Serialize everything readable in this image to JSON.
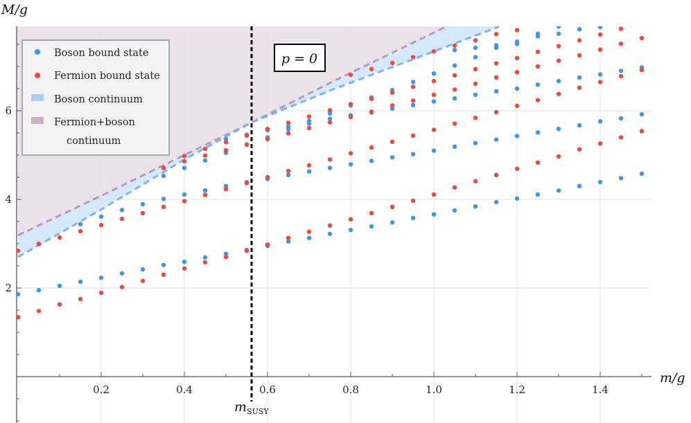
{
  "chart_data": {
    "type": "scatter",
    "title": "",
    "xlabel": "m/g",
    "ylabel": "M/g",
    "xlim": [
      0,
      1.52
    ],
    "ylim": [
      -1.0,
      7.9
    ],
    "grid": true,
    "x_ticks": [
      "0.2",
      "0.4",
      "0.6",
      "0.8",
      "1.0",
      "1.2",
      "1.4"
    ],
    "y_ticks": [
      "2",
      "4",
      "6"
    ],
    "annotation_box": "p = 0",
    "vertical_marker": {
      "x": 0.5617,
      "label": "m",
      "label_sub": "SUSY",
      "style": "black dashed"
    },
    "legend": {
      "placement": "top-left",
      "entries": [
        {
          "label": "Boson bound state",
          "kind": "marker",
          "color": "#3d95f2"
        },
        {
          "label": "Fermion bound state",
          "kind": "marker",
          "color": "#f5463a"
        },
        {
          "label": "Boson continuum",
          "kind": "swatch",
          "color": "#a9cdf7"
        },
        {
          "label": "Fermion+boson",
          "label2": "continuum",
          "kind": "swatch",
          "color": "#c8b2c8"
        }
      ]
    },
    "continua": [
      {
        "fill": "#d6e8fc",
        "line": "#7ab4f3",
        "threshold": [
          [
            0,
            2.7
          ],
          [
            0.2,
            3.77
          ],
          [
            0.4,
            4.9
          ],
          [
            0.565,
            5.75
          ],
          [
            0.757,
            6.48
          ],
          [
            1.0,
            7.34
          ],
          [
            1.157,
            7.9
          ]
        ]
      },
      {
        "fill": "#ebe1e9",
        "line": "#b79ab8",
        "threshold": [
          [
            0,
            3.19
          ],
          [
            0.2,
            4.08
          ],
          [
            0.4,
            5.0
          ],
          [
            0.565,
            5.75
          ],
          [
            0.757,
            6.66
          ],
          [
            1.03,
            7.9
          ]
        ]
      }
    ],
    "series": [
      {
        "name": "Boson bound state",
        "color": "#3d95f2",
        "points": [
          {
            "x": 0,
            "M": [
              1.86
            ]
          },
          {
            "x": 0.05,
            "M": [
              1.95,
              3.0
            ]
          },
          {
            "x": 0.1,
            "M": [
              2.05
            ]
          },
          {
            "x": 0.15,
            "M": [
              2.14,
              3.44
            ]
          },
          {
            "x": 0.2,
            "M": [
              2.23,
              3.61
            ]
          },
          {
            "x": 0.25,
            "M": [
              2.33,
              3.76
            ]
          },
          {
            "x": 0.3,
            "M": [
              2.42,
              3.89
            ]
          },
          {
            "x": 0.35,
            "M": [
              2.52,
              4.01,
              4.53
            ]
          },
          {
            "x": 0.4,
            "M": [
              2.59,
              4.11,
              4.71
            ]
          },
          {
            "x": 0.45,
            "M": [
              2.69,
              4.2,
              4.88
            ]
          },
          {
            "x": 0.5,
            "M": [
              2.77,
              4.3,
              5.05,
              5.36
            ]
          },
          {
            "x": 0.55,
            "M": [
              2.86,
              4.39,
              5.23,
              5.46
            ]
          },
          {
            "x": 0.6,
            "M": [
              2.95,
              4.46,
              5.4,
              5.56
            ]
          },
          {
            "x": 0.65,
            "M": [
              3.05,
              4.55,
              5.58,
              5.65
            ]
          },
          {
            "x": 0.7,
            "M": [
              3.13,
              4.63,
              5.71,
              5.77
            ]
          },
          {
            "x": 0.75,
            "M": [
              3.22,
              4.71,
              5.82,
              5.94
            ]
          },
          {
            "x": 0.8,
            "M": [
              3.31,
              4.79,
              5.9,
              6.12
            ]
          },
          {
            "x": 0.85,
            "M": [
              3.39,
              4.87,
              5.96,
              6.3
            ]
          },
          {
            "x": 0.9,
            "M": [
              3.48,
              4.95,
              6.05,
              6.47
            ]
          },
          {
            "x": 0.95,
            "M": [
              3.58,
              5.02,
              6.13,
              6.65
            ]
          },
          {
            "x": 1.0,
            "M": [
              3.66,
              5.1,
              6.21,
              6.84
            ]
          },
          {
            "x": 1.05,
            "M": [
              3.75,
              5.19,
              6.28,
              7.02,
              7.37
            ]
          },
          {
            "x": 1.1,
            "M": [
              3.84,
              5.27,
              6.36,
              7.21,
              7.42
            ]
          },
          {
            "x": 1.15,
            "M": [
              3.94,
              5.35,
              6.44,
              7.42,
              7.48
            ]
          },
          {
            "x": 1.2,
            "M": [
              4.02,
              5.43,
              6.5,
              7.51,
              7.56
            ]
          },
          {
            "x": 1.25,
            "M": [
              4.11,
              5.51,
              6.59,
              7.68,
              7.74
            ]
          },
          {
            "x": 1.3,
            "M": [
              4.2,
              5.59,
              6.67,
              7.74,
              7.9
            ]
          },
          {
            "x": 1.35,
            "M": [
              4.3,
              5.67,
              6.75,
              7.84
            ]
          },
          {
            "x": 1.4,
            "M": [
              4.39,
              5.76,
              6.82,
              7.89
            ]
          },
          {
            "x": 1.45,
            "M": [
              4.48,
              5.83,
              6.9
            ]
          },
          {
            "x": 1.5,
            "M": [
              4.58,
              5.92,
              6.98
            ]
          }
        ]
      },
      {
        "name": "Fermion bound state",
        "color": "#f5463a",
        "points": [
          {
            "x": 0,
            "M": [
              1.34,
              2.84
            ]
          },
          {
            "x": 0.05,
            "M": [
              1.48,
              2.99
            ]
          },
          {
            "x": 0.1,
            "M": [
              1.63,
              3.14
            ]
          },
          {
            "x": 0.15,
            "M": [
              1.75,
              3.28
            ]
          },
          {
            "x": 0.2,
            "M": [
              1.89,
              3.42
            ]
          },
          {
            "x": 0.25,
            "M": [
              2.02,
              3.56
            ]
          },
          {
            "x": 0.3,
            "M": [
              2.16,
              3.69
            ]
          },
          {
            "x": 0.35,
            "M": [
              2.3,
              3.83,
              4.71
            ]
          },
          {
            "x": 0.4,
            "M": [
              2.44,
              3.96,
              4.86,
              4.98
            ]
          },
          {
            "x": 0.45,
            "M": [
              2.58,
              4.1,
              4.99,
              5.14
            ]
          },
          {
            "x": 0.5,
            "M": [
              2.7,
              4.23,
              5.11,
              5.29
            ]
          },
          {
            "x": 0.55,
            "M": [
              2.84,
              4.37,
              5.24,
              5.44
            ]
          },
          {
            "x": 0.6,
            "M": [
              2.98,
              4.5,
              5.36,
              5.59
            ]
          },
          {
            "x": 0.65,
            "M": [
              3.13,
              4.64,
              5.49,
              5.73
            ]
          },
          {
            "x": 0.7,
            "M": [
              3.27,
              4.77,
              5.61,
              5.87
            ]
          },
          {
            "x": 0.75,
            "M": [
              3.41,
              4.9,
              5.74,
              6.01
            ]
          },
          {
            "x": 0.8,
            "M": [
              3.55,
              5.04,
              5.86,
              6.15,
              6.81
            ]
          },
          {
            "x": 0.85,
            "M": [
              3.69,
              5.17,
              5.98,
              6.27,
              6.94
            ]
          },
          {
            "x": 0.9,
            "M": [
              3.83,
              5.3,
              6.12,
              6.41,
              7.08
            ]
          },
          {
            "x": 0.95,
            "M": [
              3.97,
              5.44,
              6.23,
              6.54,
              7.21
            ]
          },
          {
            "x": 1.0,
            "M": [
              4.11,
              5.57,
              6.36,
              6.67,
              7.34
            ]
          },
          {
            "x": 1.05,
            "M": [
              4.27,
              5.71,
              6.48,
              6.8,
              7.47
            ]
          },
          {
            "x": 1.1,
            "M": [
              4.41,
              5.84,
              6.61,
              6.94,
              7.59
            ]
          },
          {
            "x": 1.15,
            "M": [
              4.55,
              5.97,
              6.75,
              7.07,
              7.73
            ]
          },
          {
            "x": 1.2,
            "M": [
              4.69,
              6.11,
              6.87,
              7.19,
              7.82
            ]
          },
          {
            "x": 1.25,
            "M": [
              4.83,
              6.24,
              7.0,
              7.33
            ]
          },
          {
            "x": 1.3,
            "M": [
              4.97,
              6.38,
              7.13,
              7.46
            ]
          },
          {
            "x": 1.35,
            "M": [
              5.13,
              6.52,
              7.25,
              7.59
            ]
          },
          {
            "x": 1.4,
            "M": [
              5.26,
              6.65,
              7.38,
              7.72
            ]
          },
          {
            "x": 1.45,
            "M": [
              5.4,
              6.78,
              7.51,
              7.85
            ]
          },
          {
            "x": 1.5,
            "M": [
              5.54,
              6.92,
              7.64
            ]
          }
        ]
      }
    ]
  }
}
